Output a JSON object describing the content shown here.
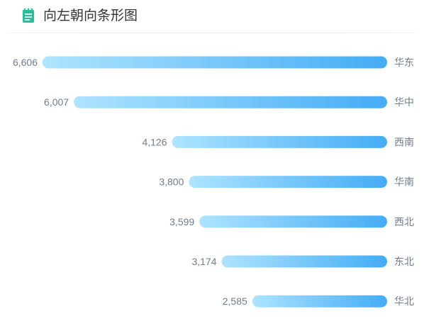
{
  "header": {
    "title": "向左朝向条形图",
    "icon": "notepad-icon",
    "icon_color": "#2dbd9c"
  },
  "colors": {
    "bar_start": "#aee4ff",
    "bar_end": "#44acf5",
    "label": "#6f7d8c"
  },
  "chart_data": {
    "type": "bar",
    "orientation": "horizontal",
    "direction": "right-to-left",
    "categories": [
      "华东",
      "华中",
      "西南",
      "华南",
      "西北",
      "东北",
      "华北"
    ],
    "values": [
      6606,
      6007,
      4126,
      3800,
      3599,
      3174,
      2585
    ],
    "value_labels": [
      "6,606",
      "6,007",
      "4,126",
      "3,800",
      "3,599",
      "3,174",
      "2,585"
    ],
    "grid": false,
    "axes_visible": false
  }
}
